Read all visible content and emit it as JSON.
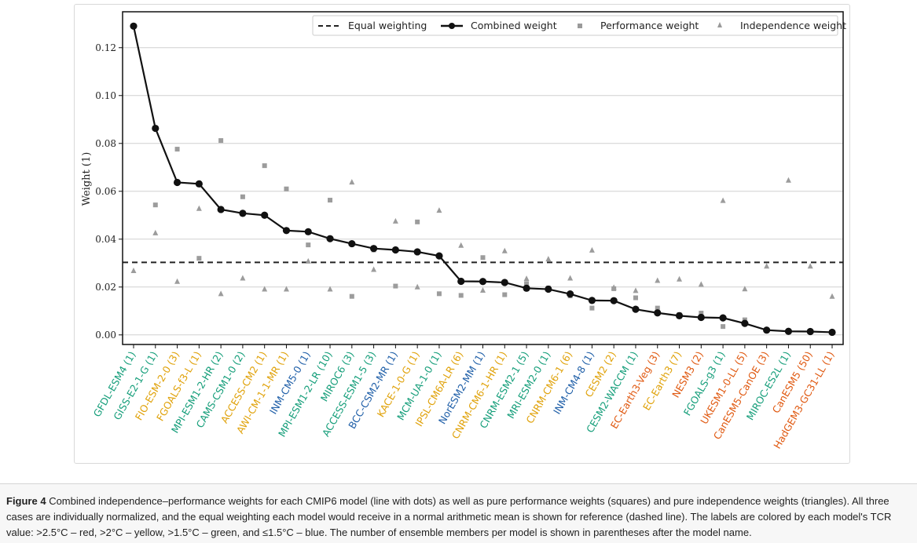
{
  "chart_data": {
    "type": "line",
    "ylabel": "Weight (1)",
    "ylim": [
      -0.004,
      0.135
    ],
    "yticks": [
      "0.00",
      "0.02",
      "0.04",
      "0.06",
      "0.08",
      "0.10",
      "0.12"
    ],
    "grid": "horizontal",
    "legend_position": "top-right",
    "equal_weighting": 0.0303,
    "models": [
      "GFDL-ESM4 (1)",
      "GISS-E2-1-G (1)",
      "FIO-ESM-2-0 (3)",
      "FGOALS-f3-L (1)",
      "MPI-ESM1-2-HR (2)",
      "CAMS-CSM1-0 (2)",
      "ACCESS-CM2 (1)",
      "AWI-CM-1-1-MR (1)",
      "INM-CM5-0 (1)",
      "MPI-ESM1-2-LR (10)",
      "MIROC6 (3)",
      "ACCESS-ESM1-5 (3)",
      "BCC-CSM2-MR (1)",
      "KACE-1-0-G (1)",
      "MCM-UA-1-0 (1)",
      "IPSL-CM6A-LR (6)",
      "NorESM2-MM (1)",
      "CNRM-CM6-1-HR (1)",
      "CNRM-ESM2-1 (5)",
      "MRI-ESM2-0 (1)",
      "CNRM-CM6-1 (6)",
      "INM-CM4-8 (1)",
      "CESM2 (2)",
      "CESM2-WACCM (1)",
      "EC-Earth3-Veg (3)",
      "EC-Earth3 (7)",
      "NESM3 (2)",
      "FGOALS-g3 (1)",
      "UKESM1-0-LL (5)",
      "CanESM5-CanOE (3)",
      "MIROC-ES2L (1)",
      "CanESM5 (50)",
      "HadGEM3-GC31-LL (1)"
    ],
    "tcr_class": [
      "green",
      "green",
      "yellow",
      "yellow",
      "green",
      "green",
      "yellow",
      "yellow",
      "blue",
      "green",
      "green",
      "green",
      "blue",
      "yellow",
      "green",
      "yellow",
      "blue",
      "yellow",
      "green",
      "green",
      "yellow",
      "blue",
      "yellow",
      "green",
      "red",
      "yellow",
      "red",
      "green",
      "red",
      "red",
      "green",
      "red",
      "red"
    ],
    "class_colors": {
      "red": "#e05a12",
      "yellow": "#e0a20a",
      "green": "#159e7a",
      "blue": "#1f5fa8"
    },
    "series": [
      {
        "name": "Combined weight",
        "values": [
          0.129,
          0.0863,
          0.0637,
          0.0631,
          0.0524,
          0.0508,
          0.05,
          0.0436,
          0.0431,
          0.0402,
          0.0381,
          0.0361,
          0.0355,
          0.0347,
          0.033,
          0.0224,
          0.0223,
          0.0219,
          0.0195,
          0.0191,
          0.0171,
          0.0144,
          0.0143,
          0.0107,
          0.0092,
          0.008,
          0.0073,
          0.0071,
          0.0048,
          0.002,
          0.0015,
          0.0014,
          0.0011
        ]
      },
      {
        "name": "Performance weight",
        "values": [
          0.129,
          0.0543,
          0.0776,
          0.032,
          0.0812,
          0.0577,
          0.0707,
          0.061,
          0.0376,
          0.0563,
          0.0161,
          0.0355,
          0.0204,
          0.0472,
          0.0172,
          0.0165,
          0.0323,
          0.0168,
          0.0214,
          0.0196,
          0.0163,
          0.0112,
          0.0193,
          0.0155,
          0.0112,
          0.0085,
          0.0091,
          0.0035,
          0.0063,
          0.0018,
          0.0015,
          0.0012,
          0.0012
        ]
      },
      {
        "name": "Independence weight",
        "values": [
          0.0268,
          0.0426,
          0.0223,
          0.0528,
          0.0172,
          0.0237,
          0.0191,
          0.0191,
          0.0308,
          0.0191,
          0.0638,
          0.0273,
          0.0475,
          0.02,
          0.052,
          0.0374,
          0.0186,
          0.0351,
          0.0235,
          0.0317,
          0.0237,
          0.0354,
          0.0198,
          0.0185,
          0.0227,
          0.0233,
          0.0211,
          0.0561,
          0.0192,
          0.0287,
          0.0646,
          0.0287,
          0.0161
        ]
      }
    ],
    "legend": [
      "Equal weighting",
      "Combined weight",
      "Performance weight",
      "Independence weight"
    ]
  },
  "caption": {
    "label": "Figure 4",
    "text": " Combined independence–performance weights for each CMIP6 model (line with dots) as well as pure performance weights (squares) and pure independence weights (triangles). All three cases are individually normalized, and the equal weighting each model would receive in a normal arithmetic mean is shown for reference (dashed line). The labels are colored by each model's TCR value: >2.5°C – red, >2°C – yellow, >1.5°C – green, and ≤1.5°C – blue. The number of ensemble members per model is shown in parentheses after the model name."
  }
}
